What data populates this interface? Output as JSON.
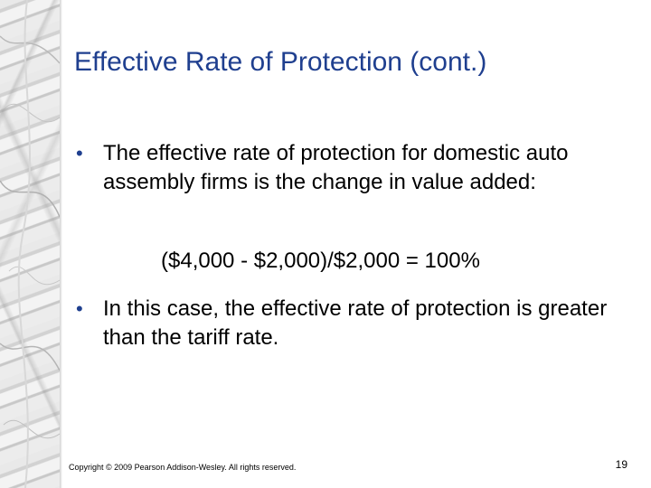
{
  "slide": {
    "title": "Effective Rate of Protection (cont.)",
    "bullets": [
      "The effective rate of protection for domestic auto assembly firms is the change in value added:",
      "In this case, the effective rate of protection is greater than the tariff rate."
    ],
    "bullet_symbol": "•",
    "formula": "($4,000 - $2,000)/$2,000 = 100%",
    "footer": {
      "copyright": "Copyright © 2009 Pearson Addison-Wesley. All rights reserved.",
      "page_number": "19"
    }
  },
  "colors": {
    "title": "#1f3f8f",
    "text": "#000000",
    "background": "#ffffff"
  }
}
